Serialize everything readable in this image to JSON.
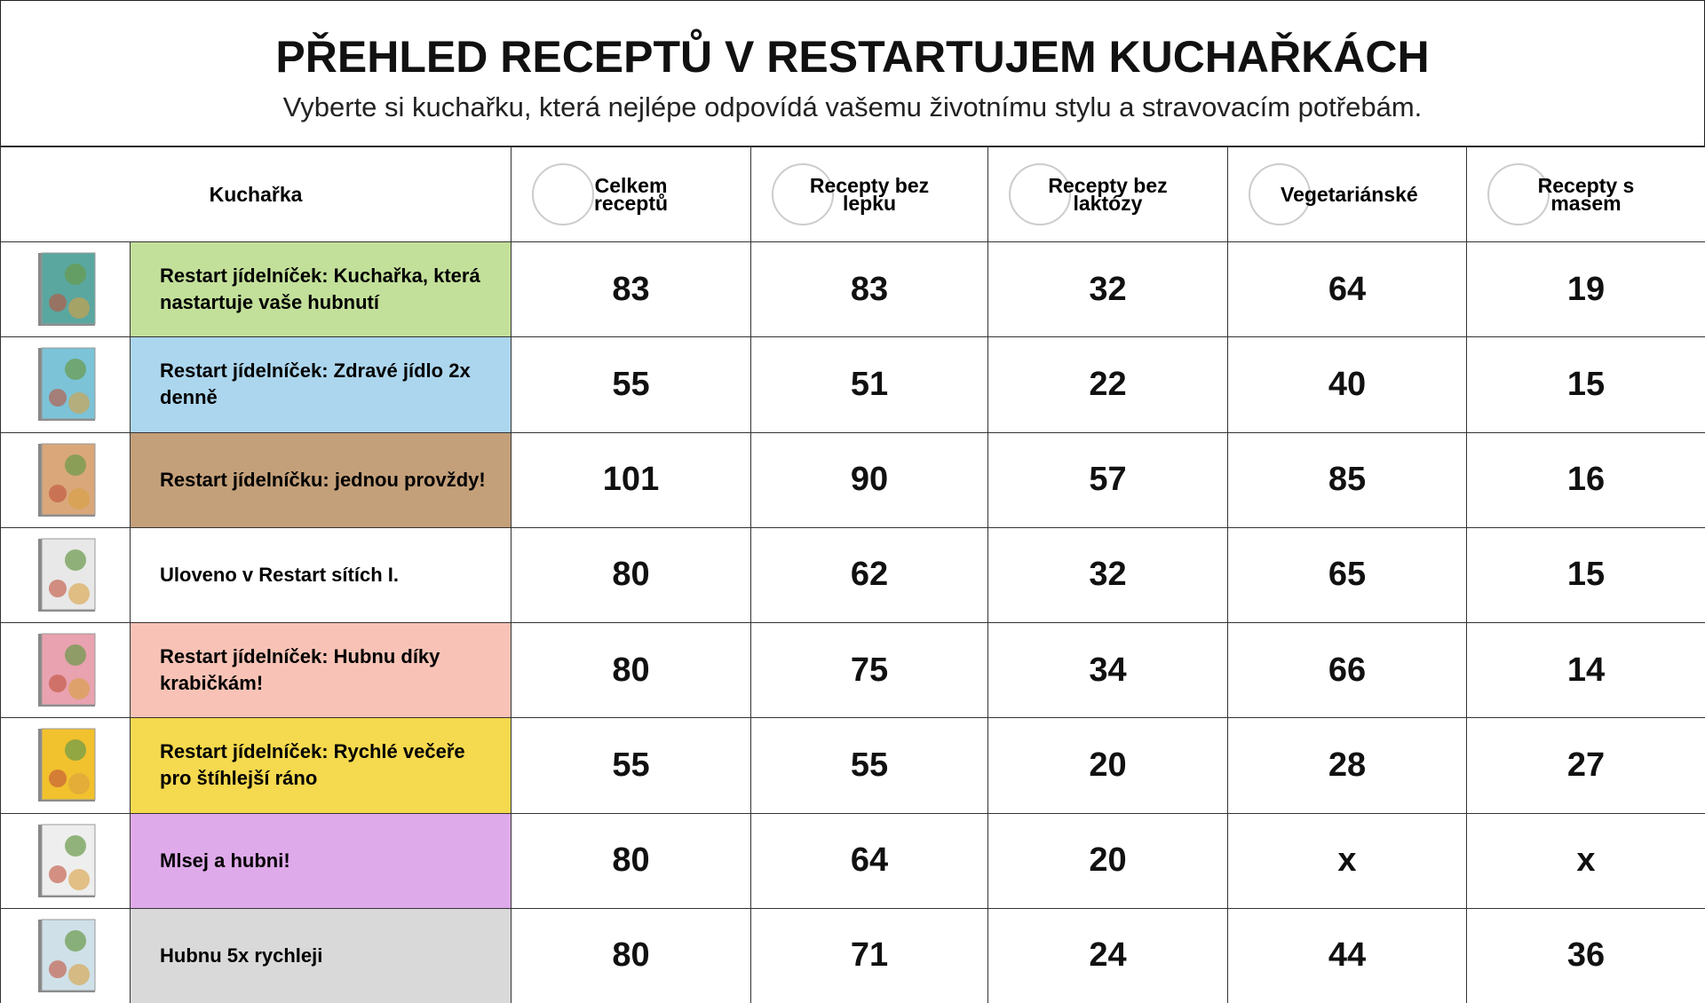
{
  "header": {
    "title": "PŘEHLED RECEPTŮ V RESTARTUJEM KUCHAŘKÁCH",
    "subtitle": "Vyberte si kuchařku, která nejlépe odpovídá vašemu životnímu stylu a stravovacím potřebám."
  },
  "table": {
    "columns": [
      "Kuchařka",
      "Celkem receptů",
      "Recepty bez lepku",
      "Recepty bez laktózy",
      "Vegetariánské",
      "Recepty s masem"
    ],
    "rows": [
      {
        "name": "Restart jídelníček: Kuchařka, která nastartuje vaše hubnutí",
        "values": [
          83,
          83,
          32,
          64,
          19
        ]
      },
      {
        "name": "Restart jídelníček: Zdravé jídlo 2x denně",
        "values": [
          55,
          51,
          22,
          40,
          15
        ]
      },
      {
        "name": "Restart jídelníčku: jednou provždy!",
        "values": [
          101,
          90,
          57,
          85,
          16
        ]
      },
      {
        "name": "Uloveno v Restart sítích I.",
        "values": [
          80,
          62,
          32,
          65,
          15
        ]
      },
      {
        "name": "Restart jídelníček: Hubnu díky krabičkám!",
        "values": [
          80,
          75,
          34,
          66,
          14
        ]
      },
      {
        "name": "Restart jídelníček: Rychlé večeře pro štíhlejší ráno",
        "values": [
          55,
          55,
          20,
          28,
          27
        ]
      },
      {
        "name": "Mlsej a hubni!",
        "values": [
          80,
          64,
          20,
          "x",
          "x"
        ]
      },
      {
        "name": "Hubnu 5x rychleji",
        "values": [
          80,
          71,
          24,
          44,
          36
        ]
      }
    ]
  }
}
